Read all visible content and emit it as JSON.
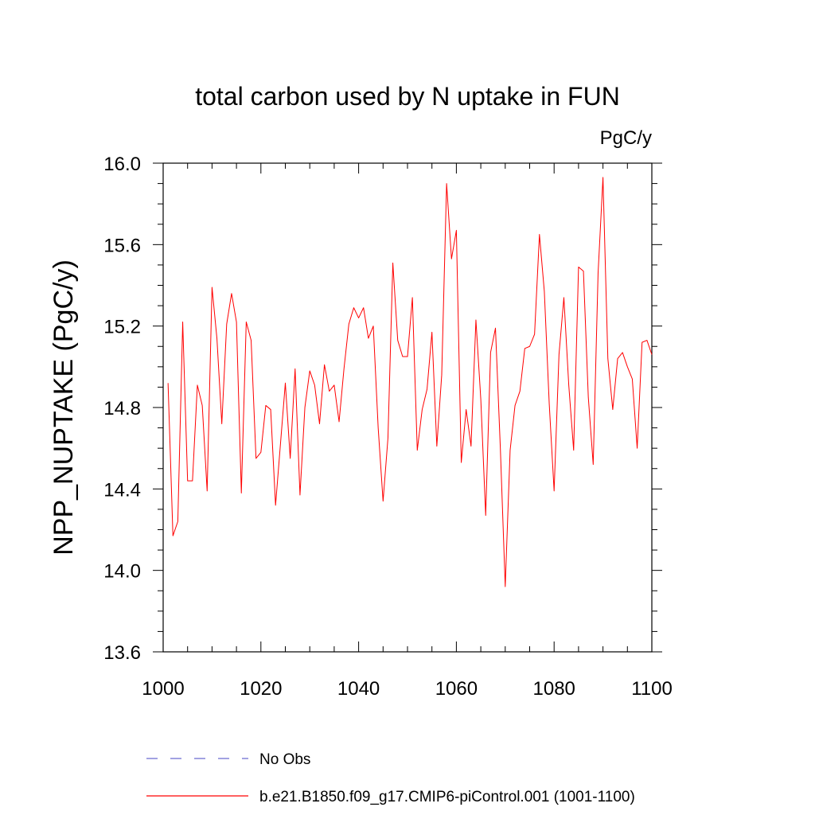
{
  "chart_data": {
    "type": "line",
    "title": "total carbon used by N uptake in FUN",
    "units": "PgC/y",
    "xlabel": "",
    "ylabel": "NPP_NUPTAKE  (PgC/y)",
    "xlim": [
      1000,
      1100
    ],
    "ylim": [
      13.6,
      16.0
    ],
    "xticks": [
      1000,
      1020,
      1040,
      1060,
      1080,
      1100
    ],
    "xtick_labels": [
      "1000",
      "1020",
      "1040",
      "1060",
      "1080",
      "1100"
    ],
    "yticks": [
      13.6,
      14.0,
      14.4,
      14.8,
      15.2,
      15.6,
      16.0
    ],
    "ytick_labels": [
      "13.6",
      "14.0",
      "14.4",
      "14.8",
      "15.2",
      "15.6",
      "16.0"
    ],
    "grid": false,
    "series": [
      {
        "name": "b.e21.B1850.f09_g17.CMIP6-piControl.001 (1001-1100)",
        "color": "#ff0000",
        "x": [
          1001,
          1002,
          1003,
          1004,
          1005,
          1006,
          1007,
          1008,
          1009,
          1010,
          1011,
          1012,
          1013,
          1014,
          1015,
          1016,
          1017,
          1018,
          1019,
          1020,
          1021,
          1022,
          1023,
          1024,
          1025,
          1026,
          1027,
          1028,
          1029,
          1030,
          1031,
          1032,
          1033,
          1034,
          1035,
          1036,
          1037,
          1038,
          1039,
          1040,
          1041,
          1042,
          1043,
          1044,
          1045,
          1046,
          1047,
          1048,
          1049,
          1050,
          1051,
          1052,
          1053,
          1054,
          1055,
          1056,
          1057,
          1058,
          1059,
          1060,
          1061,
          1062,
          1063,
          1064,
          1065,
          1066,
          1067,
          1068,
          1069,
          1070,
          1071,
          1072,
          1073,
          1074,
          1075,
          1076,
          1077,
          1078,
          1079,
          1080,
          1081,
          1082,
          1083,
          1084,
          1085,
          1086,
          1087,
          1088,
          1089,
          1090,
          1091,
          1092,
          1093,
          1094,
          1095,
          1096,
          1097,
          1098,
          1099,
          1100
        ],
        "values": [
          14.92,
          14.17,
          14.24,
          15.22,
          14.44,
          14.44,
          14.91,
          14.81,
          14.39,
          15.39,
          15.14,
          14.72,
          15.21,
          15.36,
          15.22,
          14.38,
          15.22,
          15.13,
          14.55,
          14.58,
          14.81,
          14.79,
          14.32,
          14.62,
          14.92,
          14.55,
          14.99,
          14.37,
          14.8,
          14.98,
          14.91,
          14.72,
          15.01,
          14.88,
          14.91,
          14.73,
          14.99,
          15.21,
          15.29,
          15.24,
          15.29,
          15.14,
          15.2,
          14.7,
          14.34,
          14.65,
          15.51,
          15.13,
          15.05,
          15.05,
          15.34,
          14.59,
          14.79,
          14.89,
          15.17,
          14.61,
          14.96,
          15.9,
          15.53,
          15.67,
          14.53,
          14.79,
          14.61,
          15.23,
          14.84,
          14.27,
          15.07,
          15.19,
          14.6,
          13.92,
          14.59,
          14.81,
          14.88,
          15.09,
          15.1,
          15.16,
          15.65,
          15.37,
          14.82,
          14.39,
          15.06,
          15.34,
          14.91,
          14.59,
          15.49,
          15.47,
          14.85,
          14.52,
          15.46,
          15.93,
          15.04,
          14.79,
          15.04,
          15.07,
          15.0,
          14.94,
          14.6,
          15.12,
          15.13,
          15.06
        ]
      }
    ]
  },
  "legend": {
    "position": "bottom-left",
    "items": [
      {
        "label": "No Obs",
        "color": "#6a6ad0",
        "style": "dashed"
      },
      {
        "label": "b.e21.B1850.f09_g17.CMIP6-piControl.001 (1001-1100)",
        "color": "#ff0000",
        "style": "solid"
      }
    ]
  }
}
